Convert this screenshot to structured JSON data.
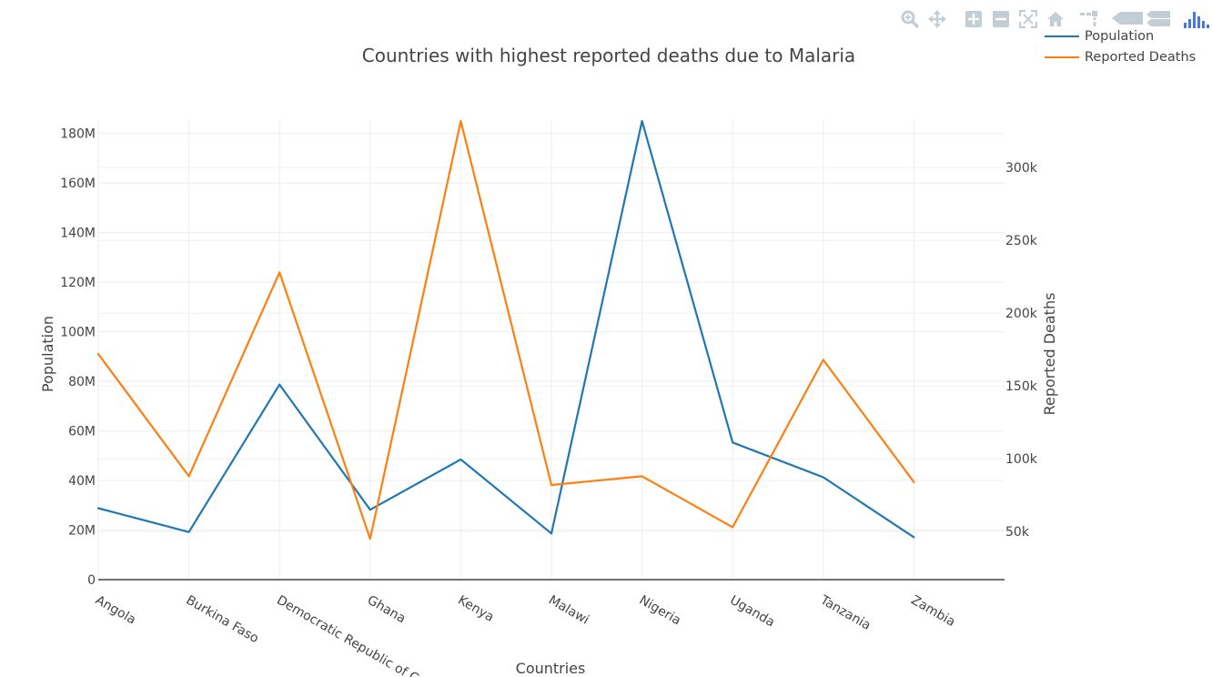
{
  "toolbar": {
    "buttons": [
      {
        "name": "zoom-icon",
        "label": "Zoom"
      },
      {
        "name": "pan-icon",
        "label": "Pan"
      },
      {
        "name": "zoom-in-icon",
        "label": "Zoom in"
      },
      {
        "name": "zoom-out-icon",
        "label": "Zoom out"
      },
      {
        "name": "autoscale-icon",
        "label": "Autoscale"
      },
      {
        "name": "reset-axes-icon",
        "label": "Reset axes"
      },
      {
        "name": "spike-lines-icon",
        "label": "Toggle spike lines"
      },
      {
        "name": "hover-closest-icon",
        "label": "Show closest data on hover"
      },
      {
        "name": "hover-compare-icon",
        "label": "Compare data on hover"
      },
      {
        "name": "plotly-logo-icon",
        "label": "Produced with Plotly"
      }
    ],
    "colors": {
      "icon": "#c3cdd6",
      "logo": "#447adb"
    }
  },
  "chart_data": {
    "type": "line",
    "title": "Countries with highest reported deaths due to Malaria",
    "xlabel": "Countries",
    "ylabel": "Population",
    "y2label": "Reported Deaths",
    "categories": [
      "Angola",
      "Burkina Faso",
      "Democratic Republic of Congo",
      "Ghana",
      "Kenya",
      "Malawi",
      "Nigeria",
      "Uganda",
      "Tanzania",
      "Zambia"
    ],
    "ylim": [
      0,
      185000000
    ],
    "y2lim": [
      17000,
      332000
    ],
    "yticks": [
      0,
      20000000,
      40000000,
      60000000,
      80000000,
      100000000,
      120000000,
      140000000,
      160000000,
      180000000
    ],
    "ytick_labels": [
      "0",
      "20M",
      "40M",
      "60M",
      "80M",
      "100M",
      "120M",
      "140M",
      "160M",
      "180M"
    ],
    "y2ticks": [
      50000,
      100000,
      150000,
      200000,
      250000,
      300000
    ],
    "y2tick_labels": [
      "50k",
      "100k",
      "150k",
      "200k",
      "250k",
      "300k"
    ],
    "series": [
      {
        "name": "Population",
        "axis": "y",
        "color": "#1f77b4",
        "values": [
          28800000,
          19200000,
          78700000,
          28200000,
          48500000,
          18600000,
          185000000,
          55300000,
          41300000,
          17100000
        ]
      },
      {
        "name": "Reported Deaths",
        "axis": "y2",
        "color": "#ff7f0e",
        "values": [
          172000,
          88000,
          228000,
          45000,
          332000,
          82000,
          88000,
          53000,
          168000,
          84000
        ]
      }
    ],
    "grid": true,
    "legend_position": "top-right"
  }
}
